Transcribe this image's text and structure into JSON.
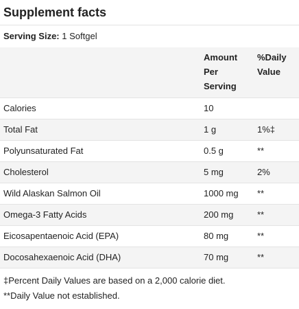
{
  "title": "Supplement facts",
  "serving": {
    "label": "Serving Size:",
    "value": "1 Softgel"
  },
  "table": {
    "headers": {
      "amount_line1": "Amount",
      "amount_line2": "Per",
      "amount_line3": "Serving",
      "dv_line1": "%Daily",
      "dv_line2": "Value"
    },
    "rows": [
      {
        "name": "Calories",
        "amount": "10",
        "dv": ""
      },
      {
        "name": "Total Fat",
        "amount": "1 g",
        "dv": "1%‡"
      },
      {
        "name": "Polyunsaturated Fat",
        "amount": "0.5 g",
        "dv": "**"
      },
      {
        "name": "Cholesterol",
        "amount": "5 mg",
        "dv": "2%"
      },
      {
        "name": "Wild Alaskan Salmon Oil",
        "amount": "1000 mg",
        "dv": "**"
      },
      {
        "name": "Omega-3 Fatty Acids",
        "amount": "200 mg",
        "dv": "**"
      },
      {
        "name": "Eicosapentaenoic Acid (EPA)",
        "amount": "80 mg",
        "dv": "**"
      },
      {
        "name": "Docosahexaenoic Acid (DHA)",
        "amount": "70 mg",
        "dv": "**"
      }
    ]
  },
  "footnotes": {
    "line1": "‡Percent Daily Values are based on a 2,000 calorie diet.",
    "line2": "**Daily Value not established."
  }
}
